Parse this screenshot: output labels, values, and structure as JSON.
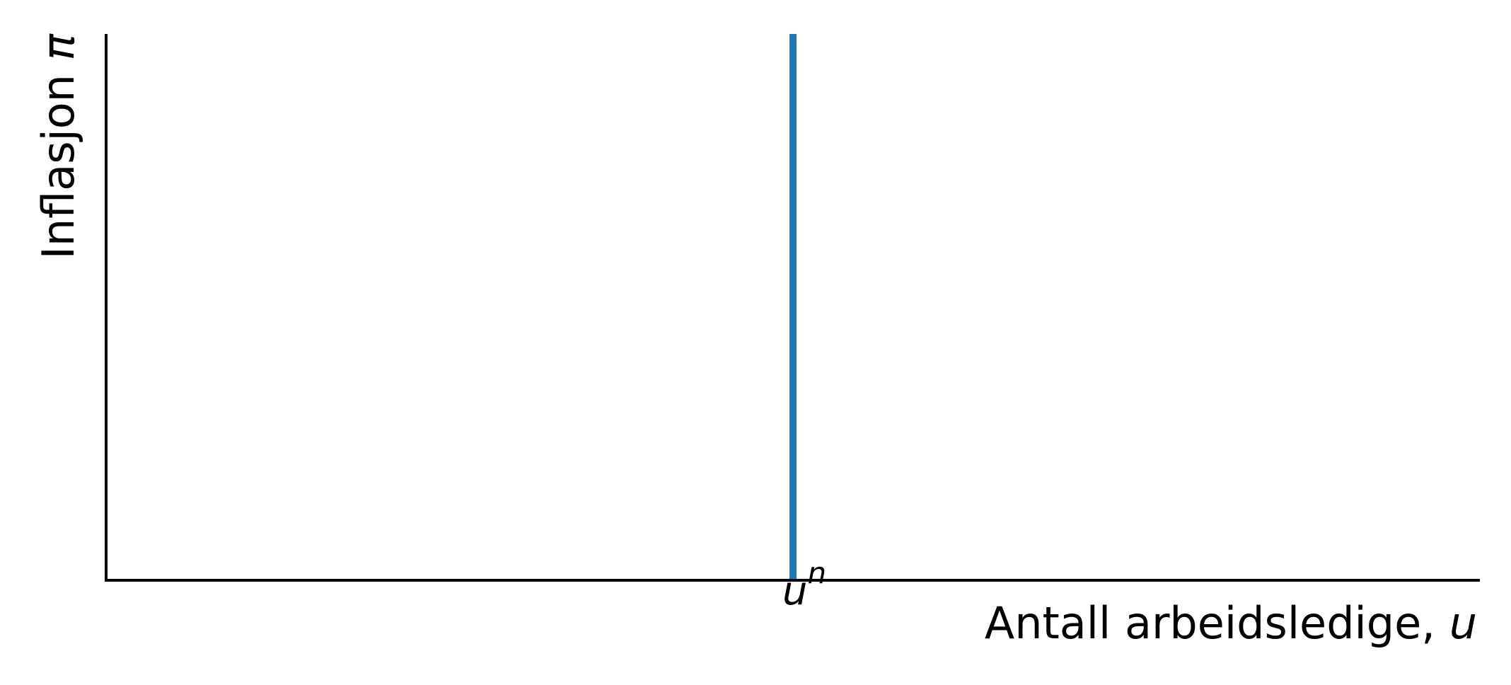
{
  "chart_data": {
    "type": "line",
    "title": "",
    "xlabel": "Antall arbeidsledige,",
    "xlabel_var": "u",
    "ylabel": "Inflasjon",
    "ylabel_var": "π",
    "xlim": [
      0,
      1
    ],
    "ylim": [
      0,
      1
    ],
    "grid": false,
    "axes_visible": [
      "left",
      "bottom"
    ],
    "tick_labels_visible": false,
    "series": [
      {
        "x": [
          0.5,
          0.5
        ],
        "y": [
          0,
          1
        ],
        "color": "#1f77b4"
      }
    ],
    "annotations": [
      {
        "text": "u",
        "superscript": "n",
        "x": 0.5
      }
    ]
  }
}
